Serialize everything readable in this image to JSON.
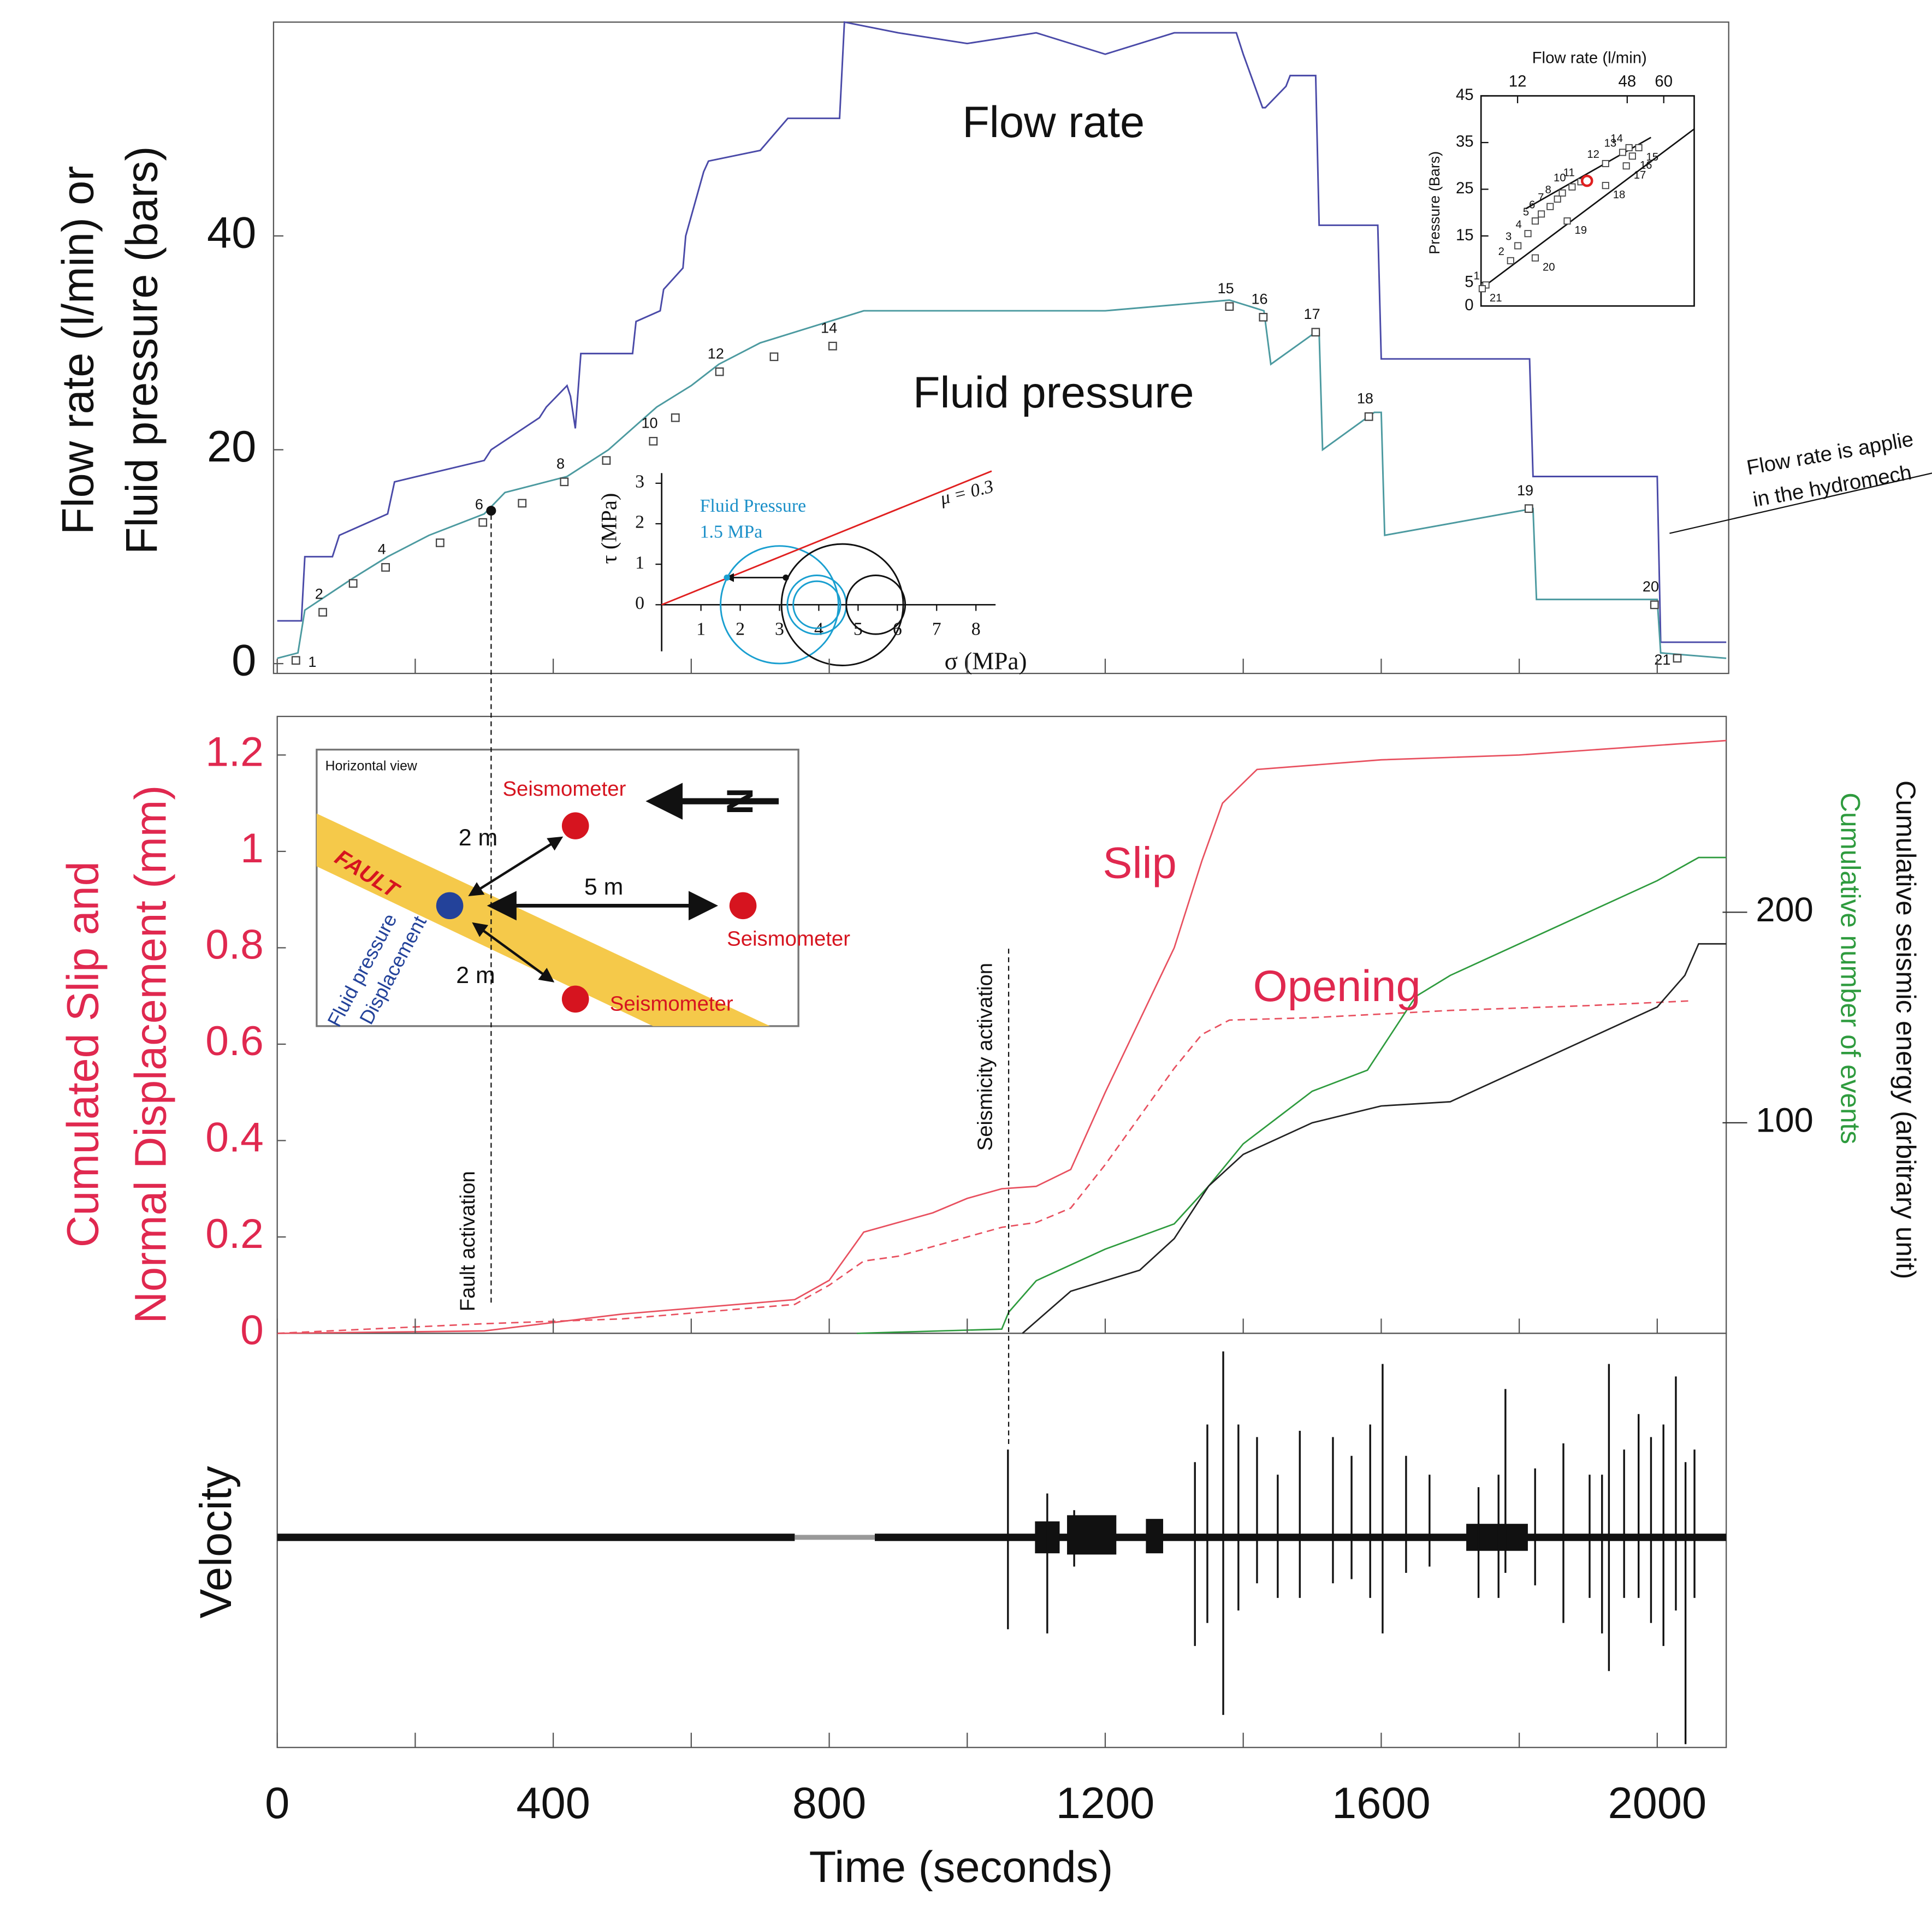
{
  "chart_data": [
    {
      "type": "line",
      "ylabel": [
        "Flow rate (l/min) or",
        "Fluid pressure (bars)"
      ],
      "ylim": [
        0,
        60
      ],
      "yticks": [
        0,
        20,
        40
      ],
      "series": [
        {
          "name": "Flow rate",
          "color": "#4a4aa8",
          "x": [
            0,
            35,
            40,
            80,
            90,
            160,
            170,
            300,
            310,
            380,
            390,
            420,
            425,
            432,
            440,
            515,
            520,
            555,
            560,
            588,
            592,
            618,
            625,
            700,
            740,
            815,
            822,
            900,
            1000,
            1100,
            1200,
            1300,
            1390,
            1400,
            1428,
            1432,
            1462,
            1468,
            1505,
            1510,
            1595,
            1600,
            1815,
            1820,
            2000,
            2005,
            2100
          ],
          "values": [
            4,
            4,
            10,
            10,
            12,
            14,
            17,
            19,
            20,
            23,
            24,
            26,
            25,
            22,
            29,
            29,
            32,
            33,
            35,
            37,
            40,
            46,
            47,
            48,
            51,
            51,
            60,
            59,
            58,
            59,
            57,
            59,
            59,
            57,
            52,
            52,
            54,
            55,
            55,
            41,
            41,
            28.5,
            28.5,
            17.5,
            17.5,
            2,
            2
          ]
        },
        {
          "name": "Fluid pressure",
          "color": "#4c9aa0",
          "x": [
            0,
            30,
            40,
            110,
            160,
            220,
            300,
            330,
            420,
            480,
            550,
            600,
            640,
            700,
            800,
            850,
            1000,
            1200,
            1380,
            1430,
            1440,
            1505,
            1510,
            1515,
            1590,
            1600,
            1605,
            1820,
            1825,
            2000,
            2005,
            2100
          ],
          "values": [
            0.5,
            1,
            5,
            8,
            10,
            12,
            14,
            16,
            17.5,
            20,
            24,
            26,
            28,
            30,
            32,
            33,
            33,
            33,
            34,
            33,
            28,
            31,
            31,
            20,
            23.5,
            23.5,
            12,
            14.5,
            6,
            6,
            1,
            0.5
          ]
        }
      ],
      "markers": {
        "labels": [
          "1",
          "2",
          null,
          "4",
          null,
          "6",
          null,
          "8",
          null,
          "10",
          null,
          "12",
          null,
          "14",
          "15",
          "16",
          "17",
          "18",
          "19",
          "20",
          "21"
        ],
        "x": [
          27,
          66,
          110,
          157,
          236,
          298,
          355,
          416,
          477,
          545,
          577,
          641,
          720,
          805,
          1380,
          1429,
          1505,
          1582,
          1814,
          1996,
          2029
        ],
        "y": [
          0.3,
          4.8,
          7.5,
          9,
          11.3,
          13.2,
          15,
          17,
          19,
          20.8,
          23,
          27.3,
          28.7,
          29.7,
          33.4,
          32.4,
          31,
          23.1,
          14.5,
          5.5,
          0.5
        ]
      },
      "activation_point": {
        "x": 310,
        "y": 14.3
      },
      "annotation": [
        "Flow rate is applie",
        "in the hydromech"
      ]
    },
    {
      "type": "scatter",
      "xlabel": "Flow rate (l/min)",
      "ylabel": "Pressure (Bars)",
      "xlim": [
        0,
        70
      ],
      "ylim": [
        0,
        45
      ],
      "xticks": [
        12,
        48,
        60
      ],
      "yticks": [
        0,
        5,
        15,
        25,
        35,
        45
      ],
      "labels": [
        "1",
        "2",
        "3",
        "4",
        "5",
        "6",
        "7",
        "8",
        null,
        "10",
        "11",
        "12",
        "13",
        "14",
        "15",
        "16",
        "17",
        "18",
        "19",
        "20",
        "21"
      ],
      "x": [
        1.6,
        9.7,
        12.1,
        15.4,
        17.8,
        19.8,
        22.7,
        25.1,
        26.7,
        29.9,
        32.8,
        40.9,
        46.5,
        48.6,
        51.8,
        49.7,
        47.7,
        40.9,
        28.3,
        17.8,
        0.4
      ],
      "values": [
        4.5,
        9.7,
        12.9,
        15.5,
        18.2,
        19.7,
        21.3,
        22.9,
        24.2,
        25.5,
        26.6,
        30.5,
        32.9,
        33.9,
        33.9,
        32.1,
        30,
        25.8,
        18.2,
        10.3,
        3.7
      ],
      "highlight": {
        "x": 34.8,
        "y": 26.8,
        "color": "#e02020"
      },
      "fit_lines": [
        {
          "x": [
            0,
            70
          ],
          "y": [
            3.7,
            37.9
          ]
        },
        {
          "x": [
            14.6,
            55.8
          ],
          "y": [
            20.8,
            36.1
          ]
        }
      ]
    },
    {
      "type": "mohr",
      "xlabel": "σ (MPa)",
      "ylabel": "τ (MPa)",
      "xlim": [
        0,
        8.5
      ],
      "ylim": [
        -1.15,
        3.25
      ],
      "xticks": [
        1,
        2,
        3,
        4,
        5,
        6,
        7,
        8
      ],
      "yticks": [
        0,
        1,
        2,
        3
      ],
      "circles": [
        {
          "color": "#1a9fd0",
          "center": 3.0,
          "radius": 1.5
        },
        {
          "color": "#1a9fd0",
          "center": 3.95,
          "radius": 0.75
        },
        {
          "color": "#1a9fd0",
          "center": 3.95,
          "radius": 0.6
        },
        {
          "color": "#111111",
          "center": 4.6,
          "radius": 1.55
        },
        {
          "color": "#111111",
          "center": 5.45,
          "radius": 0.75
        }
      ],
      "friction": {
        "label": "μ = 0.3",
        "color": "#e02020",
        "x": [
          0,
          8.4
        ],
        "y": [
          0,
          3.3
        ]
      },
      "annotation": [
        "Fluid Pressure",
        "1.5 MPa"
      ],
      "shift": {
        "x": [
          3.16,
          1.66
        ],
        "y": [
          0.67,
          0.67
        ]
      }
    },
    {
      "type": "line",
      "ylabel": [
        "Cumulated Slip and",
        "Normal Displacement (mm)"
      ],
      "ylim": [
        0,
        1.28
      ],
      "yticks": [
        0,
        0.2,
        0.4,
        0.6,
        0.8,
        1,
        1.2
      ],
      "y2lim": [
        0,
        293
      ],
      "y2ticks": [
        100,
        200
      ],
      "series": [
        {
          "name": "Slip",
          "color": "#e8505f",
          "x": [
            0,
            300,
            500,
            750,
            800,
            850,
            900,
            950,
            1000,
            1050,
            1100,
            1150,
            1200,
            1250,
            1300,
            1340,
            1370,
            1420,
            1600,
            1800,
            2000,
            2100
          ],
          "values": [
            0,
            0.005,
            0.04,
            0.07,
            0.11,
            0.21,
            0.23,
            0.25,
            0.28,
            0.3,
            0.305,
            0.34,
            0.5,
            0.65,
            0.8,
            0.98,
            1.1,
            1.17,
            1.19,
            1.2,
            1.22,
            1.23
          ]
        },
        {
          "name": "Opening",
          "color": "#e8505f",
          "dash": true,
          "x": [
            0,
            300,
            500,
            750,
            800,
            850,
            900,
            1000,
            1050,
            1100,
            1150,
            1200,
            1250,
            1300,
            1340,
            1380,
            1500,
            1700,
            1900,
            2050
          ],
          "values": [
            0,
            0.02,
            0.03,
            0.06,
            0.1,
            0.15,
            0.16,
            0.2,
            0.22,
            0.23,
            0.26,
            0.35,
            0.45,
            0.55,
            0.62,
            0.65,
            0.655,
            0.67,
            0.68,
            0.69
          ]
        },
        {
          "name": "Cumulative number of events",
          "color": "#2e9b3e",
          "axis": "y2",
          "x": [
            840,
            1050,
            1060,
            1100,
            1200,
            1300,
            1350,
            1400,
            1460,
            1500,
            1580,
            1650,
            1700,
            1800,
            1900,
            2000,
            2060,
            2100
          ],
          "values": [
            0,
            2,
            10,
            25,
            40,
            52,
            70,
            90,
            105,
            115,
            125,
            160,
            170,
            185,
            200,
            215,
            226,
            226
          ]
        },
        {
          "name": "Cumulative seismic energy (arbitrary unit)",
          "color": "#222222",
          "axis": "y2",
          "x": [
            1080,
            1150,
            1250,
            1300,
            1350,
            1400,
            1500,
            1600,
            1700,
            1800,
            1900,
            2000,
            2040,
            2060,
            2100
          ],
          "values": [
            0,
            20,
            30,
            45,
            70,
            85,
            100,
            108,
            110,
            125,
            140,
            155,
            170,
            185,
            185
          ]
        }
      ],
      "annotations": [
        {
          "text": "Fault activation",
          "x": 310
        },
        {
          "text": "Seismicity activation",
          "x": 1060
        }
      ]
    },
    {
      "type": "spikes",
      "ylabel": "Velocity",
      "xlabel": "Time (seconds)",
      "xlim": [
        0,
        2100
      ],
      "xticks": [
        0,
        400,
        800,
        1200,
        1600,
        2000
      ],
      "minor_xticks": [
        200,
        600,
        1000,
        1400,
        1800
      ],
      "ylim": [
        -1,
        1
      ],
      "x": [
        1059,
        1116,
        1155,
        1330,
        1348,
        1371,
        1393,
        1420,
        1450,
        1482,
        1530,
        1557,
        1584,
        1602,
        1636,
        1670,
        1741,
        1770,
        1780,
        1823,
        1864,
        1902,
        1920,
        1930,
        1952,
        1973,
        1991,
        2009,
        2027,
        2041,
        2054
      ],
      "series": [
        {
          "color": "#111111",
          "values": [
            0.42,
            0.21,
            0.13,
            0.36,
            0.54,
            0.89,
            0.54,
            0.48,
            0.3,
            0.51,
            0.48,
            0.39,
            0.54,
            0.83,
            0.39,
            0.3,
            0.24,
            0.3,
            0.71,
            0.33,
            0.45,
            0.3,
            0.3,
            0.83,
            0.42,
            0.59,
            0.48,
            0.54,
            0.77,
            0.36,
            0.42
          ]
        },
        {
          "color": "#111111",
          "values": [
            -0.44,
            -0.46,
            -0.14,
            -0.52,
            -0.41,
            -0.85,
            -0.35,
            -0.22,
            -0.29,
            -0.29,
            -0.22,
            -0.2,
            -0.29,
            -0.46,
            -0.17,
            -0.14,
            -0.29,
            -0.29,
            -0.17,
            -0.23,
            -0.41,
            -0.29,
            -0.46,
            -0.64,
            -0.29,
            -0.29,
            -0.41,
            -0.52,
            -0.35,
            -0.99,
            -0.29
          ]
        }
      ]
    }
  ],
  "diagram": {
    "title": "Horizontal view",
    "fault": "FAULT",
    "seismometers": [
      "Seismometer",
      "Seismometer",
      "Seismometer"
    ],
    "distances": [
      "2 m",
      "5 m",
      "2 m"
    ],
    "injection": [
      "Fluid pressure",
      "Displacement"
    ],
    "north": "N"
  }
}
